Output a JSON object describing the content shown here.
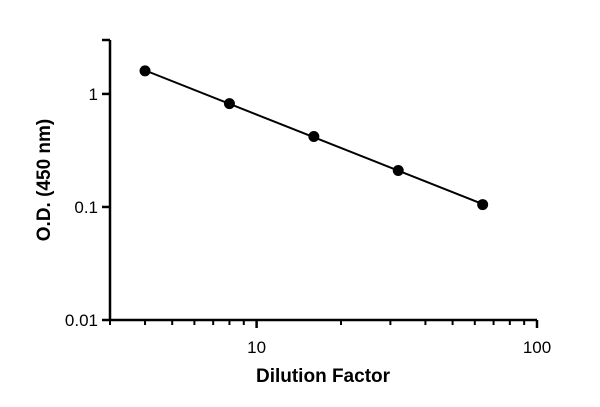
{
  "chart_data": {
    "type": "scatter",
    "title": "",
    "xlabel": "Dilution Factor",
    "ylabel": "O.D. (450 nm)",
    "xscale": "log",
    "yscale": "log",
    "xlim": [
      3,
      100
    ],
    "ylim": [
      0.01,
      3
    ],
    "x_ticks": [
      10,
      100
    ],
    "x_tick_labels": [
      "10",
      "100"
    ],
    "x_minor_ticks": [
      3,
      4,
      5,
      6,
      7,
      8,
      9,
      20,
      30,
      40,
      50,
      60,
      70,
      80,
      90
    ],
    "y_ticks": [
      0.01,
      0.1,
      1
    ],
    "y_tick_labels": [
      "0.01",
      "0.1",
      "1"
    ],
    "grid": false,
    "legend": "none",
    "series": [
      {
        "x": [
          4,
          8,
          16,
          32,
          64
        ],
        "y": [
          1.6,
          0.82,
          0.42,
          0.21,
          0.105
        ],
        "color": "#000000",
        "fit_line": true
      }
    ]
  }
}
